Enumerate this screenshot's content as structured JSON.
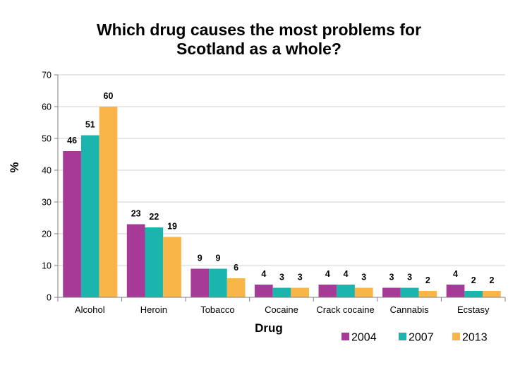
{
  "chart_data": {
    "type": "bar",
    "title_lines": [
      "Which drug causes the most problems for",
      "Scotland as a whole?"
    ],
    "xlabel": "Drug",
    "ylabel": "%",
    "ylim": [
      0,
      70
    ],
    "yticks": [
      0,
      10,
      20,
      30,
      40,
      50,
      60,
      70
    ],
    "grid": true,
    "legend_position": "bottom-right",
    "categories": [
      "Alcohol",
      "Heroin",
      "Tobacco",
      "Cocaine",
      "Crack cocaine",
      "Cannabis",
      "Ecstasy"
    ],
    "series": [
      {
        "name": "2004",
        "color": "#A63A96",
        "values": [
          46,
          23,
          9,
          4,
          4,
          3,
          4
        ]
      },
      {
        "name": "2007",
        "color": "#1BB5AE",
        "values": [
          51,
          22,
          9,
          3,
          4,
          3,
          2
        ]
      },
      {
        "name": "2013",
        "color": "#F9B548",
        "values": [
          60,
          19,
          6,
          3,
          3,
          2,
          2
        ]
      }
    ]
  }
}
